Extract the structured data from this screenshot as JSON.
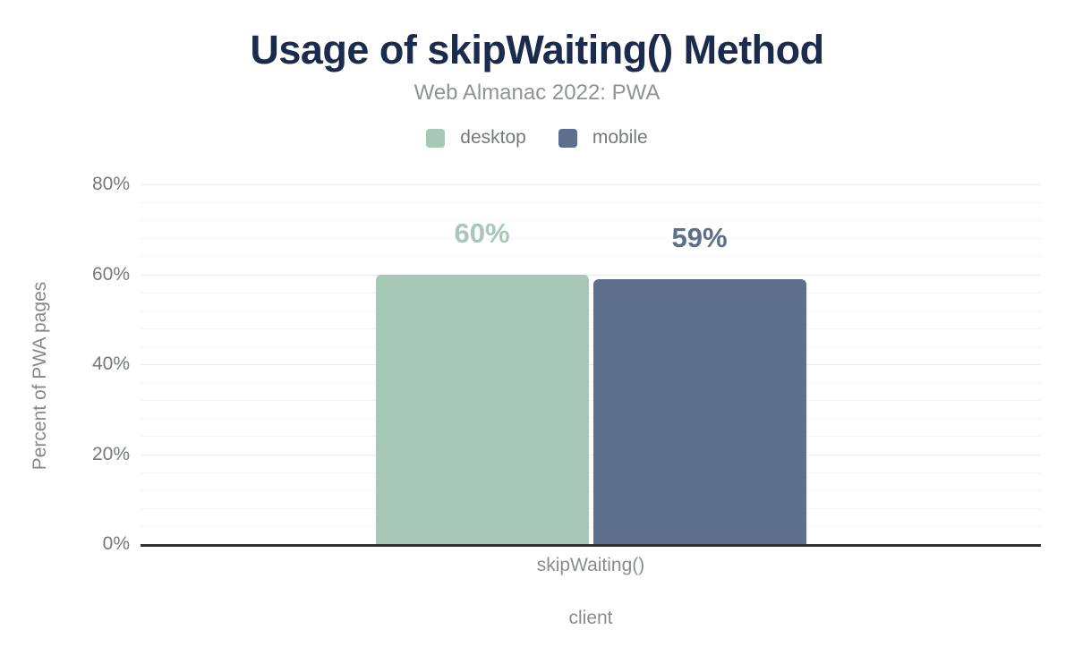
{
  "chart_data": {
    "type": "bar",
    "title": "Usage of skipWaiting() Method",
    "subtitle": "Web Almanac 2022: PWA",
    "categories": [
      "skipWaiting()"
    ],
    "series": [
      {
        "name": "desktop",
        "values": [
          60
        ],
        "data_label": "60%",
        "color": "#a7c8b6"
      },
      {
        "name": "mobile",
        "values": [
          59
        ],
        "data_label": "59%",
        "color": "#5e6f8d"
      }
    ],
    "xlabel": "client",
    "ylabel": "Percent of PWA pages",
    "ylim": [
      0,
      80
    ],
    "y_ticks": [
      {
        "value": 0,
        "label": "0%"
      },
      {
        "value": 20,
        "label": "20%"
      },
      {
        "value": 40,
        "label": "40%"
      },
      {
        "value": 60,
        "label": "60%"
      },
      {
        "value": 80,
        "label": "80%"
      }
    ],
    "y_minor_step": 4,
    "y_major_step": 20,
    "grid": "on",
    "legend_position": "top"
  },
  "colors": {
    "title": "#1b2b4d",
    "subtitle": "#8f9296",
    "legend_text": "#75797c",
    "tick_text": "#75797c",
    "axis_title_text": "#898c8f",
    "axis_line": "#2f3033",
    "major_grid": "#e8eaec",
    "minor_grid": "#f5f6f7",
    "desktop_bar": "#a7c8b6",
    "mobile_bar": "#5e6f8d"
  }
}
